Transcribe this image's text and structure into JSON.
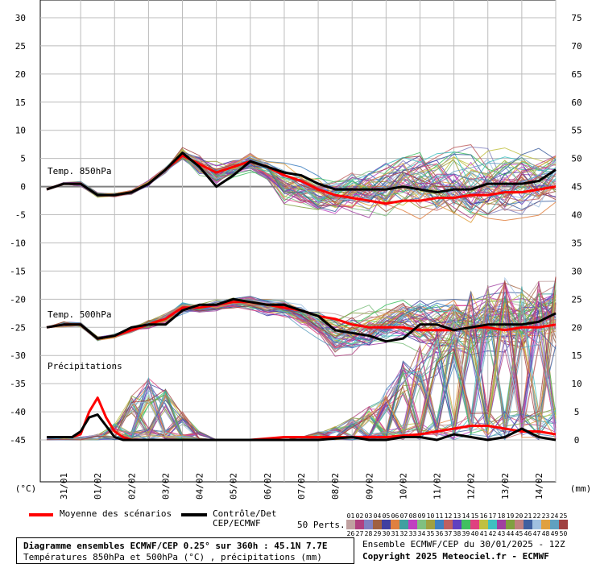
{
  "chart_data": {
    "type": "line",
    "left_axis": {
      "unit": "(°C)",
      "ticks": [
        30,
        25,
        20,
        15,
        10,
        5,
        0,
        -5,
        -10,
        -15,
        -20,
        -25,
        -30,
        -35,
        -40,
        -45
      ],
      "range": [
        -45,
        30
      ]
    },
    "right_axis": {
      "unit": "(mm)",
      "ticks": [
        75,
        70,
        65,
        60,
        55,
        50,
        45,
        40,
        35,
        30,
        25,
        20,
        15,
        10,
        5,
        0
      ],
      "range": [
        0,
        75
      ]
    },
    "x_ticks": [
      "31/01",
      "01/02",
      "02/02",
      "03/02",
      "04/02",
      "05/02",
      "06/02",
      "07/02",
      "08/02",
      "09/02",
      "10/02",
      "11/02",
      "12/02",
      "13/02",
      "14/02"
    ],
    "x_range_hours": [
      0,
      360
    ],
    "panel_labels": {
      "t850": "Temp. 850hPa",
      "t500": "Temp. 500hPa",
      "precip": "Précipitations"
    },
    "series": [
      {
        "name": "Moyenne des scénarios",
        "panel": "t850",
        "color": "#ff0000",
        "x": [
          0,
          12,
          24,
          36,
          48,
          60,
          72,
          84,
          96,
          108,
          120,
          132,
          144,
          156,
          168,
          180,
          192,
          204,
          216,
          228,
          240,
          252,
          264,
          276,
          288,
          300,
          312,
          324,
          336,
          348,
          360
        ],
        "values": [
          -0.5,
          0.5,
          0.5,
          -1.5,
          -1.5,
          -1.0,
          0.5,
          3.0,
          5.5,
          4.0,
          2.5,
          3.5,
          4.5,
          3.5,
          2.0,
          1.0,
          -0.5,
          -1.5,
          -2.0,
          -2.5,
          -3.0,
          -2.5,
          -2.5,
          -2.0,
          -2.0,
          -1.5,
          -1.5,
          -1.0,
          -1.0,
          -0.5,
          0.0
        ]
      },
      {
        "name": "Contrôle/Det CEP/ECMWF",
        "panel": "t850",
        "color": "#000000",
        "x": [
          0,
          12,
          24,
          36,
          48,
          60,
          72,
          84,
          96,
          108,
          120,
          132,
          144,
          156,
          168,
          180,
          192,
          204,
          216,
          228,
          240,
          252,
          264,
          276,
          288,
          300,
          312,
          324,
          336,
          348,
          360
        ],
        "values": [
          -0.5,
          0.5,
          0.5,
          -1.5,
          -1.5,
          -1.0,
          0.5,
          3.0,
          6.0,
          3.5,
          0.0,
          2.0,
          4.5,
          3.5,
          2.5,
          2.0,
          0.5,
          -0.5,
          -0.5,
          -0.5,
          -0.5,
          0.0,
          -0.5,
          -1.0,
          -0.5,
          -0.5,
          0.5,
          0.5,
          0.5,
          1.0,
          3.0
        ]
      },
      {
        "name": "Moyenne des scénarios",
        "panel": "t500",
        "color": "#ff0000",
        "x": [
          0,
          12,
          24,
          36,
          48,
          60,
          72,
          84,
          96,
          108,
          120,
          132,
          144,
          156,
          168,
          180,
          192,
          204,
          216,
          228,
          240,
          252,
          264,
          276,
          288,
          300,
          312,
          324,
          336,
          348,
          360
        ],
        "values": [
          -25.0,
          -24.5,
          -24.5,
          -27.0,
          -26.5,
          -25.5,
          -24.5,
          -23.5,
          -21.5,
          -21.5,
          -21.0,
          -20.5,
          -20.5,
          -21.0,
          -21.5,
          -22.0,
          -23.0,
          -23.5,
          -24.5,
          -25.0,
          -25.0,
          -25.0,
          -25.5,
          -25.5,
          -25.5,
          -25.0,
          -25.0,
          -25.5,
          -25.0,
          -25.0,
          -24.5
        ]
      },
      {
        "name": "Contrôle/Det CEP/ECMWF",
        "panel": "t500",
        "color": "#000000",
        "x": [
          0,
          12,
          24,
          36,
          48,
          60,
          72,
          84,
          96,
          108,
          120,
          132,
          144,
          156,
          168,
          180,
          192,
          204,
          216,
          228,
          240,
          252,
          264,
          276,
          288,
          300,
          312,
          324,
          336,
          348,
          360
        ],
        "values": [
          -25.0,
          -24.5,
          -24.5,
          -27.0,
          -26.5,
          -25.0,
          -24.5,
          -24.5,
          -22.0,
          -21.0,
          -21.0,
          -20.0,
          -20.5,
          -21.0,
          -21.0,
          -22.0,
          -23.0,
          -25.5,
          -26.0,
          -26.5,
          -27.5,
          -27.0,
          -24.5,
          -24.5,
          -25.5,
          -25.0,
          -24.5,
          -24.5,
          -24.5,
          -24.0,
          -22.5
        ]
      },
      {
        "name": "Moyenne des scénarios",
        "panel": "precip",
        "color": "#ff0000",
        "x": [
          0,
          6,
          12,
          18,
          24,
          30,
          36,
          42,
          48,
          54,
          60,
          66,
          72,
          96,
          120,
          144,
          168,
          192,
          216,
          240,
          264,
          288,
          300,
          312,
          324,
          336,
          348,
          360
        ],
        "values": [
          0.5,
          0.5,
          0.5,
          0.5,
          1.0,
          5.0,
          7.5,
          4.0,
          1.5,
          0.5,
          0.0,
          0.0,
          0.0,
          0.0,
          0.0,
          0.0,
          0.5,
          0.5,
          0.5,
          0.5,
          1.0,
          2.0,
          2.5,
          2.5,
          2.0,
          1.5,
          1.5,
          1.0
        ]
      },
      {
        "name": "Contrôle/Det CEP/ECMWF",
        "panel": "precip",
        "color": "#000000",
        "x": [
          0,
          6,
          12,
          18,
          24,
          30,
          36,
          42,
          48,
          54,
          60,
          66,
          72,
          96,
          120,
          144,
          168,
          192,
          216,
          228,
          240,
          252,
          264,
          276,
          288,
          300,
          312,
          324,
          336,
          348,
          360
        ],
        "values": [
          0.5,
          0.5,
          0.5,
          0.5,
          1.5,
          4.0,
          4.5,
          2.5,
          0.5,
          0.0,
          0.0,
          0.0,
          0.0,
          0.0,
          0.0,
          0.0,
          0.0,
          0.0,
          0.5,
          0.0,
          0.0,
          0.5,
          0.5,
          0.0,
          1.0,
          0.5,
          0.0,
          0.5,
          2.0,
          0.5,
          0.0
        ]
      }
    ],
    "ensemble": {
      "count": 50,
      "t850_spread_min": [
        -0.5,
        0.5,
        0.0,
        -2.0,
        -2.0,
        -1.5,
        0.0,
        2.0,
        4.0,
        1.0,
        -1.5,
        0.5,
        2.0,
        0.5,
        -4.5,
        -5.0,
        -6.0,
        -6.0,
        -6.5,
        -7.0,
        -8.0,
        -8.0,
        -8.5,
        -9.5,
        -10.0,
        -9.5,
        -9.0,
        -9.0,
        -8.0,
        -7.0,
        -6.0
      ],
      "t850_spread_max": [
        -0.5,
        1.0,
        1.0,
        -1.0,
        -1.0,
        -0.5,
        1.5,
        4.0,
        7.5,
        6.5,
        5.5,
        6.0,
        7.0,
        5.5,
        5.5,
        4.5,
        3.5,
        3.0,
        5.0,
        6.0,
        7.0,
        8.0,
        9.0,
        9.5,
        10.5,
        9.5,
        9.5,
        9.0,
        9.0,
        8.5,
        9.5
      ],
      "t500_spread_min": [
        -25.0,
        -25.0,
        -25.0,
        -27.5,
        -27.0,
        -26.0,
        -25.5,
        -24.5,
        -23.0,
        -23.0,
        -22.5,
        -22.0,
        -22.5,
        -23.5,
        -24.0,
        -26.0,
        -28.0,
        -32.0,
        -31.0,
        -31.0,
        -30.5,
        -30.0,
        -32.0,
        -32.5,
        -31.0,
        -32.0,
        -30.5,
        -31.0,
        -31.5,
        -29.0,
        -27.0
      ],
      "t500_spread_max": [
        -25.0,
        -24.0,
        -24.0,
        -26.5,
        -26.0,
        -24.5,
        -23.5,
        -22.0,
        -20.0,
        -20.0,
        -19.5,
        -19.0,
        -18.5,
        -19.0,
        -19.5,
        -20.0,
        -20.5,
        -21.0,
        -20.5,
        -20.0,
        -19.0,
        -18.5,
        -17.5,
        -18.0,
        -17.5,
        -18.0,
        -17.0,
        -17.5,
        -17.0,
        -16.5,
        -16.0
      ],
      "precip_spread_max": [
        0.5,
        0.5,
        0.5,
        1.0,
        3.0,
        8.0,
        11.0,
        9.0,
        5.0,
        1.5,
        0.0,
        0.0,
        0.0,
        0.0,
        0.0,
        0.5,
        1.5,
        2.5,
        4.0,
        6.0,
        9.0,
        14.0,
        17.0,
        20.0,
        24.0,
        27.0,
        29.0,
        29.0,
        28.0,
        29.0,
        29.0
      ]
    }
  },
  "legend": {
    "mean_label": "Moyenne des scénarios",
    "mean_color": "#ff0000",
    "control_label_1": "Contrôle/Det",
    "control_label_2": "CEP/ECMWF",
    "control_color": "#000000",
    "perts_label": "50 Perts.",
    "perts_numbers": [
      "01",
      "02",
      "03",
      "04",
      "05",
      "06",
      "07",
      "08",
      "09",
      "10",
      "11",
      "12",
      "13",
      "14",
      "15",
      "16",
      "17",
      "18",
      "19",
      "20",
      "21",
      "22",
      "23",
      "24",
      "25",
      "26",
      "27",
      "28",
      "29",
      "30",
      "31",
      "32",
      "33",
      "34",
      "35",
      "36",
      "37",
      "38",
      "39",
      "40",
      "41",
      "42",
      "43",
      "44",
      "45",
      "46",
      "47",
      "48",
      "49",
      "50"
    ],
    "perts_colors": [
      "#c0a0a0",
      "#b04080",
      "#8080c0",
      "#a06040",
      "#4040a0",
      "#e08040",
      "#40a0a0",
      "#c040c0",
      "#80c080",
      "#a0a040",
      "#4080c0",
      "#c06060",
      "#6040c0",
      "#40c060",
      "#e04080",
      "#c0c040",
      "#40c0c0",
      "#a040a0",
      "#80a040",
      "#c08080",
      "#4060a0",
      "#a0c0e0",
      "#e0a040",
      "#60a0c0",
      "#a04040",
      "#c0a0a0",
      "#b04080",
      "#8080c0",
      "#a06040",
      "#4040a0",
      "#e08040",
      "#40a0a0",
      "#c040c0",
      "#80c080",
      "#a0a040",
      "#4080c0",
      "#c06060",
      "#6040c0",
      "#40c060",
      "#e04080",
      "#c0c040",
      "#40c0c0",
      "#a040a0",
      "#80a040",
      "#c08080",
      "#4060a0",
      "#a0c0e0",
      "#e0a040",
      "#60a0c0",
      "#a04040"
    ]
  },
  "footer": {
    "title": "Diagramme ensembles ECMWF/CEP 0.25° sur 360h : 45.1N 7.7E",
    "subtitle": "Températures 850hPa et 500hPa (°C) , précipitations (mm)",
    "run": "Ensemble ECMWF/CEP du 30/01/2025 - 12Z",
    "copyright": "Copyright 2025 Meteociel.fr - ECMWF"
  }
}
